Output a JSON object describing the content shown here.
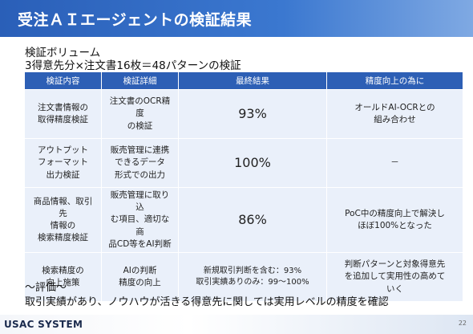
{
  "header": {
    "title": "受注ＡＩエージェントの検証結果"
  },
  "intro": {
    "line1": "検証ボリューム",
    "line2": "3得意先分×注文書16枚＝48パターンの検証"
  },
  "table": {
    "headers": [
      "検証内容",
      "検証詳細",
      "最終結果",
      "精度向上の為に"
    ],
    "rows": [
      {
        "content": "注文書情報の\n取得精度検証",
        "detail": "注文書のOCR精度\nの検証",
        "result": "93%",
        "improve": "オールドAI-OCRとの\n組み合わせ"
      },
      {
        "content": "アウトプット\nフォーマット\n出力検証",
        "detail": "販売管理に連携\nできるデータ\n形式での出力",
        "result": "100%",
        "improve": "－"
      },
      {
        "content": "商品情報、取引先\n情報の\n検索精度検証",
        "detail": "販売管理に取り込\nむ項目、適切な商\n品CD等をAI判断",
        "result": "86%",
        "improve": "PoC中の精度向上で解決し\nほぼ100%となった"
      },
      {
        "content": "検索精度の\n向上施策",
        "detail": "AIの判断\n精度の向上",
        "result": "新規取引判断を含む：93%\n取引実績ありのみ：99～100%",
        "improve": "判断パターンと対象得意先\nを追加して実用性の高めて\nいく"
      }
    ]
  },
  "evaluation": {
    "heading": "～評価～",
    "text": "取引実績があり、ノウハウが活きる得意先に関しては実用レベルの精度を確認"
  },
  "footer": {
    "brand": "USAC SYSTEM",
    "page": "22"
  }
}
